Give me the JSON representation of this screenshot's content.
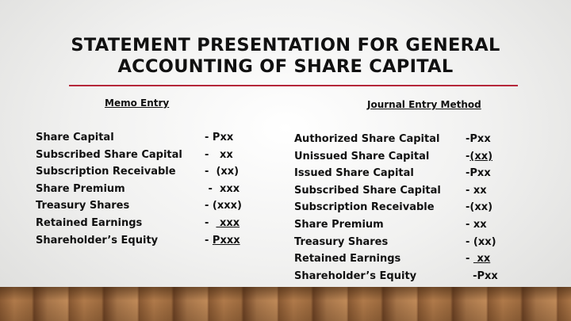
{
  "title": {
    "line1": "STATEMENT PRESENTATION FOR GENERAL",
    "line2": "ACCOUNTING OF SHARE CAPITAL"
  },
  "memo": {
    "heading": "Memo Entry",
    "rows": [
      {
        "label": "Share Capital",
        "pre": "- ",
        "val": "Pxx",
        "u": false
      },
      {
        "label": "Subscribed Share Capital",
        "pre": "-   ",
        "val": "xx",
        "u": false
      },
      {
        "label": "Subscription Receivable",
        "pre": "-  ",
        "val": "(xx)",
        "u": false
      },
      {
        "label": "Share Premium",
        "pre": " -  ",
        "val": "xxx",
        "u": false
      },
      {
        "label": "Treasury Shares",
        "pre": "- ",
        "val": "(xxx)",
        "u": false
      },
      {
        "label": "Retained Earnings",
        "pre": "-  ",
        "val": " xxx",
        "u": true
      },
      {
        "label": "Shareholder’s Equity",
        "pre": "- ",
        "val": "Pxxx",
        "u": true
      }
    ]
  },
  "journal": {
    "heading": "Journal Entry Method",
    "rows": [
      {
        "label": "Authorized Share Capital",
        "pre": "-",
        "val": "Pxx",
        "u": false
      },
      {
        "label": "Unissued Share Capital",
        "pre": "-",
        "val": "(xx)",
        "u": true
      },
      {
        "label": "Issued Share Capital",
        "pre": "-",
        "val": "Pxx",
        "u": false
      },
      {
        "label": "Subscribed Share Capital",
        "pre": "- ",
        "val": "xx",
        "u": false
      },
      {
        "label": "Subscription Receivable",
        "pre": "-",
        "val": "(xx)",
        "u": false
      },
      {
        "label": "Share Premium",
        "pre": "- ",
        "val": "xx",
        "u": false
      },
      {
        "label": "Treasury Shares",
        "pre": "- ",
        "val": "(xx)",
        "u": false
      },
      {
        "label": "Retained Earnings",
        "pre": "- ",
        "val": " xx",
        "u": true
      },
      {
        "label": "Shareholder’s Equity",
        "pre": "  ",
        "val": "-Pxx",
        "u": false
      }
    ]
  },
  "colors": {
    "accent_rule": "#b5273a"
  }
}
